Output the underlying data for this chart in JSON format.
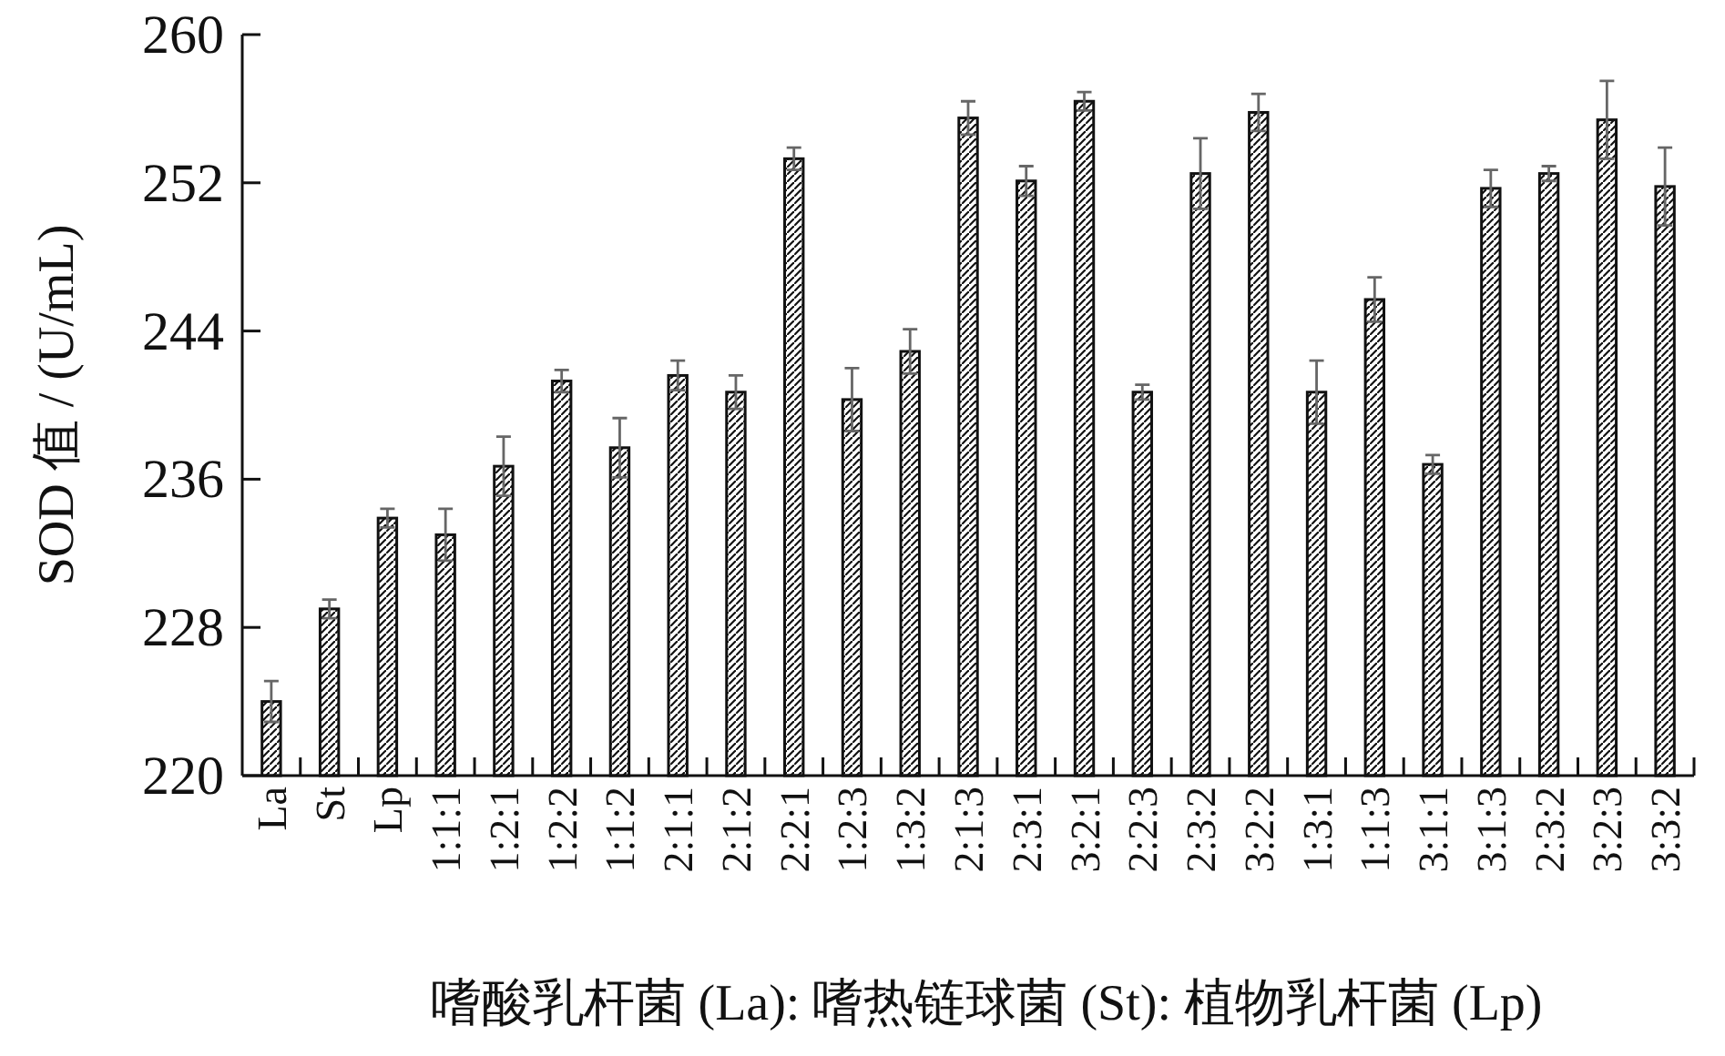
{
  "chart_data": {
    "type": "bar",
    "ylabel": "SOD 值 / (U/mL)",
    "xlabel": "嗜酸乳杆菌 (La): 嗜热链球菌 (St): 植物乳杆菌 (Lp)",
    "categories": [
      "La",
      "St",
      "Lp",
      "1:1:1",
      "1:2:1",
      "1:2:2",
      "1:1:2",
      "2:1:1",
      "2:1:2",
      "2:2:1",
      "1:2:3",
      "1:3:2",
      "2:1:3",
      "2:3:1",
      "3:2:1",
      "2:2:3",
      "2:3:2",
      "3:2:2",
      "1:3:1",
      "1:1:3",
      "3:1:1",
      "3:1:3",
      "2:3:2",
      "3:2:3",
      "3:3:2"
    ],
    "values": [
      224.0,
      229.0,
      233.9,
      233.0,
      236.7,
      241.3,
      237.7,
      241.6,
      240.7,
      253.3,
      240.3,
      242.9,
      255.5,
      252.1,
      256.4,
      240.7,
      252.5,
      255.8,
      240.7,
      245.7,
      236.8,
      251.7,
      252.5,
      255.4,
      251.8
    ],
    "errors": [
      1.1,
      0.5,
      0.5,
      1.4,
      1.6,
      0.6,
      1.6,
      0.8,
      0.9,
      0.6,
      1.7,
      1.2,
      0.9,
      0.8,
      0.5,
      0.4,
      1.9,
      1.0,
      1.7,
      1.2,
      0.5,
      1.0,
      0.4,
      2.1,
      2.1
    ],
    "color": "#111111",
    "ylim": [
      220,
      260
    ],
    "yticks": [
      220,
      228,
      236,
      244,
      252,
      260
    ],
    "grid": false
  }
}
